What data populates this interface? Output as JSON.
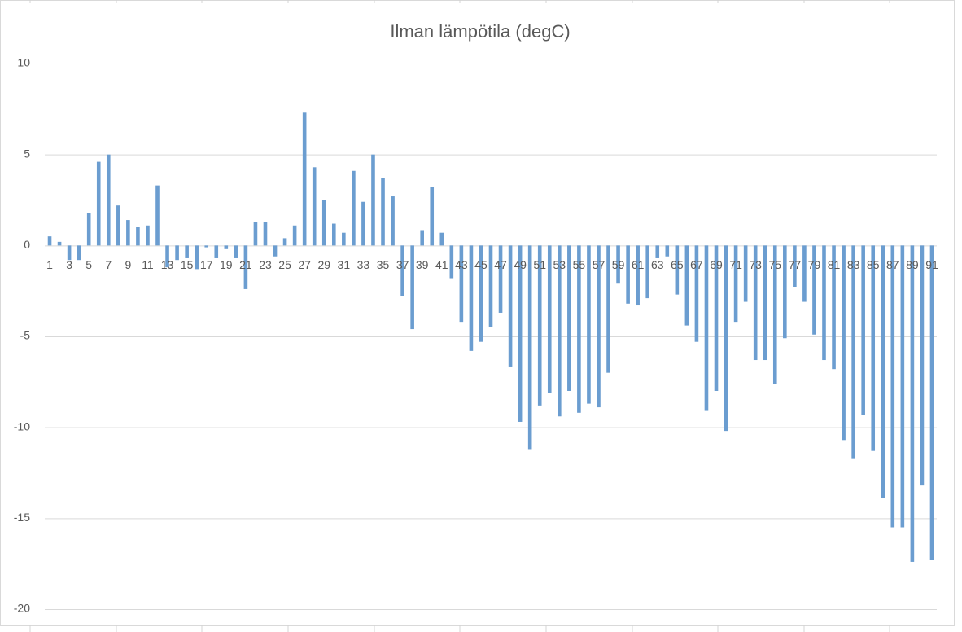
{
  "chart_data": {
    "type": "bar",
    "title": "Ilman lämpötila (degC)",
    "categories": [
      1,
      null,
      3,
      null,
      5,
      null,
      7,
      null,
      9,
      null,
      11,
      null,
      13,
      null,
      15,
      null,
      17,
      null,
      19,
      null,
      21,
      null,
      23,
      null,
      25,
      null,
      27,
      null,
      29,
      null,
      31,
      null,
      33,
      null,
      35,
      null,
      37,
      null,
      39,
      null,
      41,
      null,
      43,
      null,
      45,
      null,
      47,
      null,
      49,
      null,
      51,
      null,
      53,
      null,
      55,
      null,
      57,
      null,
      59,
      null,
      61,
      null,
      63,
      null,
      65,
      null,
      67,
      null,
      69,
      null,
      71,
      null,
      73,
      null,
      75,
      null,
      77,
      null,
      79,
      null,
      81,
      null,
      83,
      null,
      85,
      null,
      87,
      null,
      89,
      null,
      91
    ],
    "values": [
      0.5,
      0.2,
      -0.8,
      -0.8,
      1.8,
      4.6,
      5.0,
      2.2,
      1.4,
      1.0,
      1.1,
      3.3,
      -1.2,
      -0.8,
      -0.7,
      -1.3,
      -0.1,
      -0.7,
      -0.2,
      -0.7,
      -2.4,
      1.3,
      1.3,
      -0.6,
      0.4,
      1.1,
      7.3,
      4.3,
      2.5,
      1.2,
      0.7,
      4.1,
      2.4,
      5.0,
      3.7,
      2.7,
      -2.8,
      -4.6,
      0.8,
      3.2,
      0.7,
      -1.8,
      -4.2,
      -5.8,
      -5.3,
      -4.5,
      -3.7,
      -6.7,
      -9.7,
      -11.2,
      -8.8,
      -8.1,
      -9.4,
      -8.0,
      -9.2,
      -8.7,
      -8.9,
      -7.0,
      -2.1,
      -3.2,
      -3.3,
      -2.9,
      -0.7,
      -0.6,
      -2.7,
      -4.4,
      -5.3,
      -9.1,
      -8.0,
      -10.2,
      -4.2,
      -3.1,
      -6.3,
      -6.3,
      -7.6,
      -5.1,
      -2.3,
      -3.1,
      -4.9,
      -6.3,
      -6.8,
      -10.7,
      -11.7,
      -9.3,
      -11.3,
      -13.9,
      -15.5,
      -15.5,
      -17.4,
      -13.2,
      -17.3
    ],
    "color": "#6b9dd0",
    "ylim": [
      -20,
      10
    ],
    "yticks": [
      -20,
      -15,
      -10,
      -5,
      0,
      5,
      10
    ],
    "grid": true
  }
}
